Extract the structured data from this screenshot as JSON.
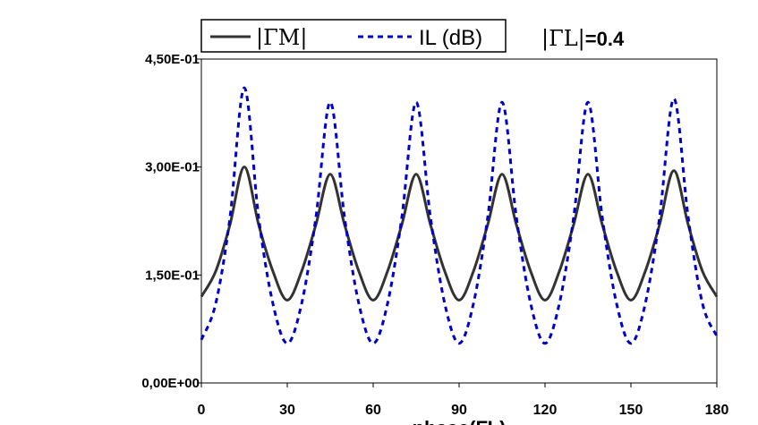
{
  "chart_data": {
    "type": "line",
    "xlabel": "phase(ΓL)",
    "ylabel": "",
    "xlim": [
      0,
      180
    ],
    "ylim": [
      0,
      0.45
    ],
    "x_ticks": [
      "0",
      "30",
      "60",
      "90",
      "120",
      "150",
      "180"
    ],
    "y_ticks": [
      "0,00E+00",
      "1,50E-01",
      "3,00E-01",
      "4,50E-01"
    ],
    "grid": false,
    "legend_position": "top",
    "annotation": {
      "symbol": "|ΓL|",
      "value": "=0.4"
    },
    "x": [
      0,
      5,
      10,
      15,
      20,
      25,
      30,
      35,
      40,
      45,
      50,
      55,
      60,
      65,
      70,
      75,
      80,
      85,
      90,
      95,
      100,
      105,
      110,
      115,
      120,
      125,
      130,
      135,
      140,
      145,
      150,
      155,
      160,
      165,
      170,
      175,
      180
    ],
    "series": [
      {
        "name": "|ΓM|",
        "color": "#333333",
        "style": "solid",
        "values": [
          0.12,
          0.155,
          0.22,
          0.3,
          0.22,
          0.155,
          0.115,
          0.155,
          0.22,
          0.29,
          0.22,
          0.155,
          0.115,
          0.155,
          0.22,
          0.29,
          0.22,
          0.155,
          0.115,
          0.155,
          0.22,
          0.29,
          0.22,
          0.155,
          0.115,
          0.155,
          0.22,
          0.29,
          0.22,
          0.155,
          0.115,
          0.155,
          0.22,
          0.295,
          0.22,
          0.155,
          0.12
        ]
      },
      {
        "name": "IL (dB)",
        "color": "#0000cc",
        "style": "dashed",
        "values": [
          0.06,
          0.11,
          0.23,
          0.41,
          0.23,
          0.11,
          0.055,
          0.11,
          0.23,
          0.39,
          0.23,
          0.11,
          0.055,
          0.11,
          0.23,
          0.39,
          0.23,
          0.11,
          0.055,
          0.11,
          0.23,
          0.39,
          0.23,
          0.11,
          0.055,
          0.11,
          0.23,
          0.39,
          0.23,
          0.11,
          0.055,
          0.11,
          0.23,
          0.395,
          0.23,
          0.11,
          0.065
        ]
      }
    ]
  }
}
